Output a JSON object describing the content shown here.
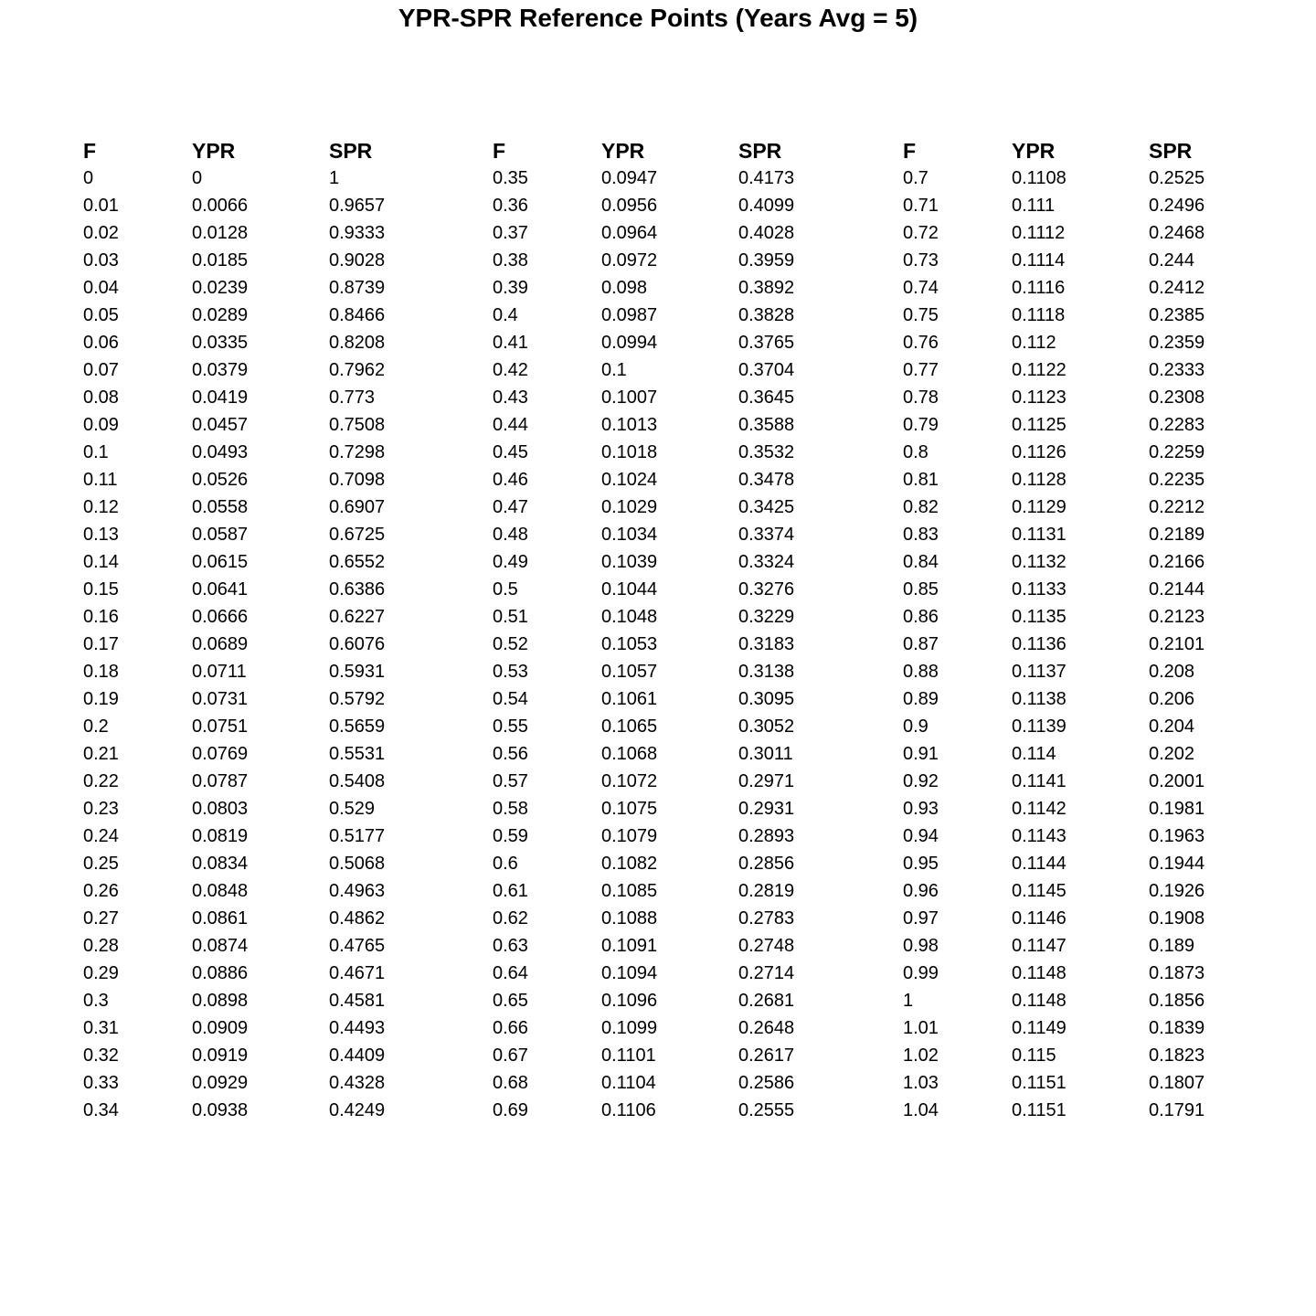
{
  "title": "YPR-SPR Reference Points (Years Avg = 5)",
  "columns": [
    "F",
    "YPR",
    "SPR"
  ],
  "blocks": [
    {
      "rows": [
        [
          "0",
          "0",
          "1"
        ],
        [
          "0.01",
          "0.0066",
          "0.9657"
        ],
        [
          "0.02",
          "0.0128",
          "0.9333"
        ],
        [
          "0.03",
          "0.0185",
          "0.9028"
        ],
        [
          "0.04",
          "0.0239",
          "0.8739"
        ],
        [
          "0.05",
          "0.0289",
          "0.8466"
        ],
        [
          "0.06",
          "0.0335",
          "0.8208"
        ],
        [
          "0.07",
          "0.0379",
          "0.7962"
        ],
        [
          "0.08",
          "0.0419",
          "0.773"
        ],
        [
          "0.09",
          "0.0457",
          "0.7508"
        ],
        [
          "0.1",
          "0.0493",
          "0.7298"
        ],
        [
          "0.11",
          "0.0526",
          "0.7098"
        ],
        [
          "0.12",
          "0.0558",
          "0.6907"
        ],
        [
          "0.13",
          "0.0587",
          "0.6725"
        ],
        [
          "0.14",
          "0.0615",
          "0.6552"
        ],
        [
          "0.15",
          "0.0641",
          "0.6386"
        ],
        [
          "0.16",
          "0.0666",
          "0.6227"
        ],
        [
          "0.17",
          "0.0689",
          "0.6076"
        ],
        [
          "0.18",
          "0.0711",
          "0.5931"
        ],
        [
          "0.19",
          "0.0731",
          "0.5792"
        ],
        [
          "0.2",
          "0.0751",
          "0.5659"
        ],
        [
          "0.21",
          "0.0769",
          "0.5531"
        ],
        [
          "0.22",
          "0.0787",
          "0.5408"
        ],
        [
          "0.23",
          "0.0803",
          "0.529"
        ],
        [
          "0.24",
          "0.0819",
          "0.5177"
        ],
        [
          "0.25",
          "0.0834",
          "0.5068"
        ],
        [
          "0.26",
          "0.0848",
          "0.4963"
        ],
        [
          "0.27",
          "0.0861",
          "0.4862"
        ],
        [
          "0.28",
          "0.0874",
          "0.4765"
        ],
        [
          "0.29",
          "0.0886",
          "0.4671"
        ],
        [
          "0.3",
          "0.0898",
          "0.4581"
        ],
        [
          "0.31",
          "0.0909",
          "0.4493"
        ],
        [
          "0.32",
          "0.0919",
          "0.4409"
        ],
        [
          "0.33",
          "0.0929",
          "0.4328"
        ],
        [
          "0.34",
          "0.0938",
          "0.4249"
        ]
      ]
    },
    {
      "rows": [
        [
          "0.35",
          "0.0947",
          "0.4173"
        ],
        [
          "0.36",
          "0.0956",
          "0.4099"
        ],
        [
          "0.37",
          "0.0964",
          "0.4028"
        ],
        [
          "0.38",
          "0.0972",
          "0.3959"
        ],
        [
          "0.39",
          "0.098",
          "0.3892"
        ],
        [
          "0.4",
          "0.0987",
          "0.3828"
        ],
        [
          "0.41",
          "0.0994",
          "0.3765"
        ],
        [
          "0.42",
          "0.1",
          "0.3704"
        ],
        [
          "0.43",
          "0.1007",
          "0.3645"
        ],
        [
          "0.44",
          "0.1013",
          "0.3588"
        ],
        [
          "0.45",
          "0.1018",
          "0.3532"
        ],
        [
          "0.46",
          "0.1024",
          "0.3478"
        ],
        [
          "0.47",
          "0.1029",
          "0.3425"
        ],
        [
          "0.48",
          "0.1034",
          "0.3374"
        ],
        [
          "0.49",
          "0.1039",
          "0.3324"
        ],
        [
          "0.5",
          "0.1044",
          "0.3276"
        ],
        [
          "0.51",
          "0.1048",
          "0.3229"
        ],
        [
          "0.52",
          "0.1053",
          "0.3183"
        ],
        [
          "0.53",
          "0.1057",
          "0.3138"
        ],
        [
          "0.54",
          "0.1061",
          "0.3095"
        ],
        [
          "0.55",
          "0.1065",
          "0.3052"
        ],
        [
          "0.56",
          "0.1068",
          "0.3011"
        ],
        [
          "0.57",
          "0.1072",
          "0.2971"
        ],
        [
          "0.58",
          "0.1075",
          "0.2931"
        ],
        [
          "0.59",
          "0.1079",
          "0.2893"
        ],
        [
          "0.6",
          "0.1082",
          "0.2856"
        ],
        [
          "0.61",
          "0.1085",
          "0.2819"
        ],
        [
          "0.62",
          "0.1088",
          "0.2783"
        ],
        [
          "0.63",
          "0.1091",
          "0.2748"
        ],
        [
          "0.64",
          "0.1094",
          "0.2714"
        ],
        [
          "0.65",
          "0.1096",
          "0.2681"
        ],
        [
          "0.66",
          "0.1099",
          "0.2648"
        ],
        [
          "0.67",
          "0.1101",
          "0.2617"
        ],
        [
          "0.68",
          "0.1104",
          "0.2586"
        ],
        [
          "0.69",
          "0.1106",
          "0.2555"
        ]
      ]
    },
    {
      "rows": [
        [
          "0.7",
          "0.1108",
          "0.2525"
        ],
        [
          "0.71",
          "0.111",
          "0.2496"
        ],
        [
          "0.72",
          "0.1112",
          "0.2468"
        ],
        [
          "0.73",
          "0.1114",
          "0.244"
        ],
        [
          "0.74",
          "0.1116",
          "0.2412"
        ],
        [
          "0.75",
          "0.1118",
          "0.2385"
        ],
        [
          "0.76",
          "0.112",
          "0.2359"
        ],
        [
          "0.77",
          "0.1122",
          "0.2333"
        ],
        [
          "0.78",
          "0.1123",
          "0.2308"
        ],
        [
          "0.79",
          "0.1125",
          "0.2283"
        ],
        [
          "0.8",
          "0.1126",
          "0.2259"
        ],
        [
          "0.81",
          "0.1128",
          "0.2235"
        ],
        [
          "0.82",
          "0.1129",
          "0.2212"
        ],
        [
          "0.83",
          "0.1131",
          "0.2189"
        ],
        [
          "0.84",
          "0.1132",
          "0.2166"
        ],
        [
          "0.85",
          "0.1133",
          "0.2144"
        ],
        [
          "0.86",
          "0.1135",
          "0.2123"
        ],
        [
          "0.87",
          "0.1136",
          "0.2101"
        ],
        [
          "0.88",
          "0.1137",
          "0.208"
        ],
        [
          "0.89",
          "0.1138",
          "0.206"
        ],
        [
          "0.9",
          "0.1139",
          "0.204"
        ],
        [
          "0.91",
          "0.114",
          "0.202"
        ],
        [
          "0.92",
          "0.1141",
          "0.2001"
        ],
        [
          "0.93",
          "0.1142",
          "0.1981"
        ],
        [
          "0.94",
          "0.1143",
          "0.1963"
        ],
        [
          "0.95",
          "0.1144",
          "0.1944"
        ],
        [
          "0.96",
          "0.1145",
          "0.1926"
        ],
        [
          "0.97",
          "0.1146",
          "0.1908"
        ],
        [
          "0.98",
          "0.1147",
          "0.189"
        ],
        [
          "0.99",
          "0.1148",
          "0.1873"
        ],
        [
          "1",
          "0.1148",
          "0.1856"
        ],
        [
          "1.01",
          "0.1149",
          "0.1839"
        ],
        [
          "1.02",
          "0.115",
          "0.1823"
        ],
        [
          "1.03",
          "0.1151",
          "0.1807"
        ],
        [
          "1.04",
          "0.1151",
          "0.1791"
        ]
      ]
    }
  ]
}
